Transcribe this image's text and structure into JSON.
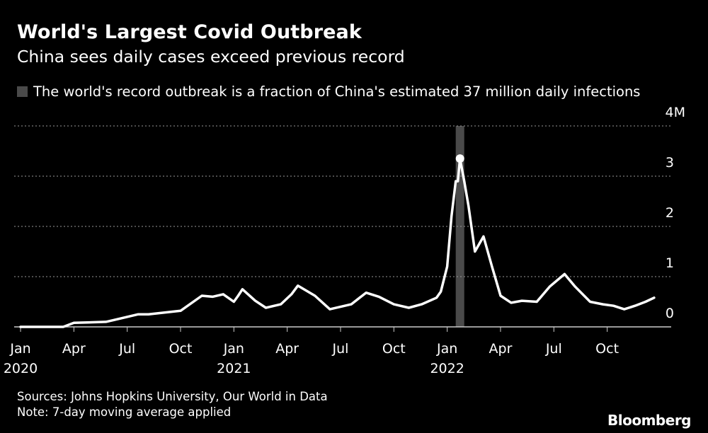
{
  "title": "World's Largest Covid Outbreak",
  "subtitle": "China sees daily cases exceed previous record",
  "legend_text": "The world's record outbreak is a fraction of China's estimated 37 million daily infections",
  "colors": {
    "background": "#000000",
    "line": "#ffffff",
    "highlight": "#4a4a4a",
    "grid": "#9a9a9a"
  },
  "chart_data": {
    "type": "line",
    "title": "World's Largest Covid Outbreak",
    "series": [
      {
        "name": "Daily cases (7-day moving average)",
        "x": [
          2020.0,
          2020.2,
          2020.25,
          2020.4,
          2020.45,
          2020.55,
          2020.6,
          2020.75,
          2020.85,
          2020.9,
          2020.95,
          2021.0,
          2021.02,
          2021.04,
          2021.1,
          2021.15,
          2021.22,
          2021.27,
          2021.3,
          2021.38,
          2021.45,
          2021.55,
          2021.62,
          2021.68,
          2021.75,
          2021.82,
          2021.88,
          2021.95,
          2021.97,
          2022.0,
          2022.02,
          2022.04,
          2022.05,
          2022.06,
          2022.08,
          2022.1,
          2022.13,
          2022.17,
          2022.21,
          2022.25,
          2022.3,
          2022.35,
          2022.42,
          2022.48,
          2022.55,
          2022.6,
          2022.67,
          2022.73,
          2022.78,
          2022.83,
          2022.88,
          2022.93,
          2022.97
        ],
        "values": [
          0.0,
          0.0,
          0.08,
          0.1,
          0.15,
          0.25,
          0.25,
          0.32,
          0.62,
          0.6,
          0.65,
          0.5,
          0.62,
          0.75,
          0.52,
          0.38,
          0.45,
          0.65,
          0.82,
          0.62,
          0.35,
          0.45,
          0.68,
          0.6,
          0.45,
          0.38,
          0.45,
          0.58,
          0.7,
          1.2,
          2.2,
          2.9,
          2.9,
          3.35,
          2.9,
          2.4,
          1.5,
          1.8,
          1.2,
          0.62,
          0.48,
          0.52,
          0.5,
          0.8,
          1.05,
          0.8,
          0.5,
          0.45,
          0.42,
          0.35,
          0.42,
          0.5,
          0.58
        ]
      }
    ],
    "peak_marker": {
      "x": 2022.06,
      "value": 3.35
    },
    "highlight_band": {
      "x_start": 2022.04,
      "x_end": 2022.08
    },
    "xlim": [
      2019.97,
      2023.05
    ],
    "ylim": [
      0,
      4
    ],
    "y_ticks": [
      {
        "value": 0,
        "label": "0"
      },
      {
        "value": 1,
        "label": "1"
      },
      {
        "value": 2,
        "label": "2"
      },
      {
        "value": 3,
        "label": "3"
      },
      {
        "value": 4,
        "label": "4M"
      }
    ],
    "x_ticks": [
      {
        "value": 2020.0,
        "label": "Jan",
        "year": "2020"
      },
      {
        "value": 2020.25,
        "label": "Apr"
      },
      {
        "value": 2020.5,
        "label": "Jul"
      },
      {
        "value": 2020.75,
        "label": "Oct"
      },
      {
        "value": 2021.0,
        "label": "Jan",
        "year": "2021"
      },
      {
        "value": 2021.25,
        "label": "Apr"
      },
      {
        "value": 2021.5,
        "label": "Jul"
      },
      {
        "value": 2021.75,
        "label": "Oct"
      },
      {
        "value": 2022.0,
        "label": "Jan",
        "year": "2022"
      },
      {
        "value": 2022.25,
        "label": "Apr"
      },
      {
        "value": 2022.5,
        "label": "Jul"
      },
      {
        "value": 2022.75,
        "label": "Oct"
      }
    ],
    "grid": true,
    "xlabel": "",
    "ylabel": ""
  },
  "footer": {
    "sources": "Sources: Johns Hopkins University, Our World in Data",
    "note": "Note: 7-day moving average applied"
  },
  "brand": "Bloomberg"
}
